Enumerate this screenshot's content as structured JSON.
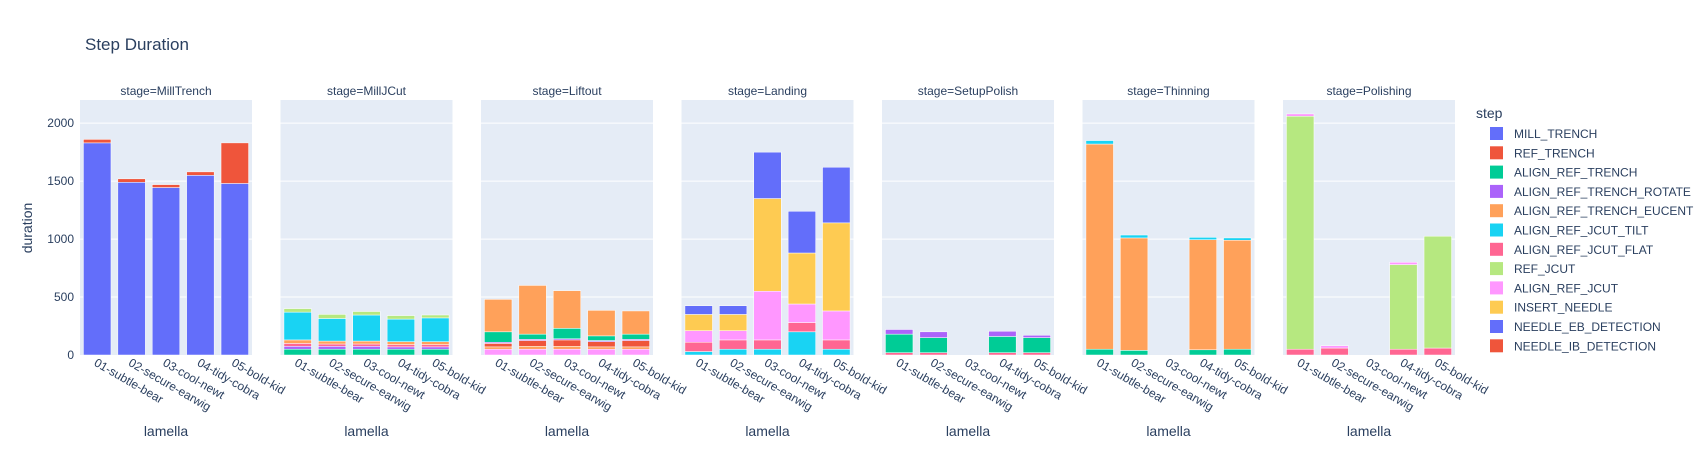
{
  "chart_data": {
    "type": "bar",
    "barmode": "stack",
    "title": "Step Duration",
    "xlabel": "lamella",
    "ylabel": "duration",
    "ylim": [
      0,
      2200
    ],
    "y_ticks": [
      0,
      500,
      1000,
      1500,
      2000
    ],
    "facet_prefix": "stage=",
    "categories": [
      "01-subtle-bear",
      "02-secure-earwig",
      "03-cool-newt",
      "04-tidy-cobra",
      "05-bold-kid"
    ],
    "legend": {
      "title": "step",
      "placement": "right",
      "entries": [
        {
          "name": "MILL_TRENCH",
          "color": "#636efa"
        },
        {
          "name": "REF_TRENCH",
          "color": "#EF553B"
        },
        {
          "name": "ALIGN_REF_TRENCH",
          "color": "#00cc96"
        },
        {
          "name": "ALIGN_REF_TRENCH_ROTATE",
          "color": "#ab63fa"
        },
        {
          "name": "ALIGN_REF_TRENCH_EUCENT",
          "color": "#FFA15A"
        },
        {
          "name": "ALIGN_REF_JCUT_TILT",
          "color": "#19d3f3"
        },
        {
          "name": "ALIGN_REF_JCUT_FLAT",
          "color": "#FF6692"
        },
        {
          "name": "REF_JCUT",
          "color": "#B6E880"
        },
        {
          "name": "ALIGN_REF_JCUT",
          "color": "#FF97FF"
        },
        {
          "name": "INSERT_NEEDLE",
          "color": "#FECB52"
        },
        {
          "name": "NEEDLE_EB_DETECTION",
          "color": "#636efa"
        },
        {
          "name": "NEEDLE_IB_DETECTION",
          "color": "#EF553B"
        }
      ]
    },
    "facets": [
      {
        "stage": "MillTrench",
        "bars": [
          [
            {
              "step": "MILL_TRENCH",
              "value": 1830
            },
            {
              "step": "REF_TRENCH",
              "value": 30
            }
          ],
          [
            {
              "step": "MILL_TRENCH",
              "value": 1490
            },
            {
              "step": "REF_TRENCH",
              "value": 30
            }
          ],
          [
            {
              "step": "MILL_TRENCH",
              "value": 1445
            },
            {
              "step": "REF_TRENCH",
              "value": 25
            }
          ],
          [
            {
              "step": "MILL_TRENCH",
              "value": 1550
            },
            {
              "step": "REF_TRENCH",
              "value": 30
            }
          ],
          [
            {
              "step": "MILL_TRENCH",
              "value": 1480
            },
            {
              "step": "REF_TRENCH",
              "value": 350
            }
          ]
        ]
      },
      {
        "stage": "MillJCut",
        "bars": [
          [
            {
              "step": "ALIGN_REF_TRENCH",
              "value": 50
            },
            {
              "step": "ALIGN_REF_TRENCH_ROTATE",
              "value": 25
            },
            {
              "step": "ALIGN_REF_JCUT_FLAT",
              "value": 25
            },
            {
              "step": "ALIGN_REF_TRENCH_EUCENT",
              "value": 30
            },
            {
              "step": "ALIGN_REF_JCUT_TILT",
              "value": 240
            },
            {
              "step": "REF_JCUT",
              "value": 30
            }
          ],
          [
            {
              "step": "ALIGN_REF_TRENCH",
              "value": 50
            },
            {
              "step": "ALIGN_REF_TRENCH_ROTATE",
              "value": 25
            },
            {
              "step": "ALIGN_REF_JCUT_FLAT",
              "value": 20
            },
            {
              "step": "ALIGN_REF_TRENCH_EUCENT",
              "value": 25
            },
            {
              "step": "ALIGN_REF_JCUT_TILT",
              "value": 195
            },
            {
              "step": "REF_JCUT",
              "value": 35
            }
          ],
          [
            {
              "step": "ALIGN_REF_TRENCH",
              "value": 50
            },
            {
              "step": "ALIGN_REF_TRENCH_ROTATE",
              "value": 25
            },
            {
              "step": "ALIGN_REF_JCUT_FLAT",
              "value": 20
            },
            {
              "step": "ALIGN_REF_TRENCH_EUCENT",
              "value": 25
            },
            {
              "step": "ALIGN_REF_JCUT_TILT",
              "value": 225
            },
            {
              "step": "REF_JCUT",
              "value": 30
            }
          ],
          [
            {
              "step": "ALIGN_REF_TRENCH",
              "value": 50
            },
            {
              "step": "ALIGN_REF_TRENCH_ROTATE",
              "value": 20
            },
            {
              "step": "ALIGN_REF_JCUT_FLAT",
              "value": 20
            },
            {
              "step": "ALIGN_REF_TRENCH_EUCENT",
              "value": 25
            },
            {
              "step": "ALIGN_REF_JCUT_TILT",
              "value": 195
            },
            {
              "step": "REF_JCUT",
              "value": 30
            }
          ],
          [
            {
              "step": "ALIGN_REF_TRENCH",
              "value": 50
            },
            {
              "step": "ALIGN_REF_TRENCH_ROTATE",
              "value": 20
            },
            {
              "step": "ALIGN_REF_JCUT_FLAT",
              "value": 20
            },
            {
              "step": "ALIGN_REF_TRENCH_EUCENT",
              "value": 25
            },
            {
              "step": "ALIGN_REF_JCUT_TILT",
              "value": 205
            },
            {
              "step": "REF_JCUT",
              "value": 25
            }
          ]
        ]
      },
      {
        "stage": "Liftout",
        "bars": [
          [
            {
              "step": "ALIGN_REF_JCUT",
              "value": 50
            },
            {
              "step": "ALIGN_REF_TRENCH_EUCENT",
              "value": 20
            },
            {
              "step": "NEEDLE_IB_DETECTION",
              "value": 30
            },
            {
              "step": "ALIGN_REF_TRENCH_ROTATE",
              "value": 10
            },
            {
              "step": "ALIGN_REF_TRENCH",
              "value": 90
            },
            {
              "step": "ALIGN_REF_TRENCH_EUCENT",
              "value": 280
            }
          ],
          [
            {
              "step": "ALIGN_REF_JCUT",
              "value": 50
            },
            {
              "step": "ALIGN_REF_TRENCH_EUCENT",
              "value": 25
            },
            {
              "step": "NEEDLE_IB_DETECTION",
              "value": 50
            },
            {
              "step": "ALIGN_REF_TRENCH_ROTATE",
              "value": 10
            },
            {
              "step": "ALIGN_REF_TRENCH",
              "value": 45
            },
            {
              "step": "ALIGN_REF_TRENCH_EUCENT",
              "value": 420
            }
          ],
          [
            {
              "step": "ALIGN_REF_JCUT",
              "value": 50
            },
            {
              "step": "ALIGN_REF_TRENCH_EUCENT",
              "value": 25
            },
            {
              "step": "NEEDLE_IB_DETECTION",
              "value": 55
            },
            {
              "step": "ALIGN_REF_TRENCH_ROTATE",
              "value": 10
            },
            {
              "step": "ALIGN_REF_TRENCH",
              "value": 90
            },
            {
              "step": "ALIGN_REF_TRENCH_EUCENT",
              "value": 325
            }
          ],
          [
            {
              "step": "ALIGN_REF_JCUT",
              "value": 50
            },
            {
              "step": "ALIGN_REF_TRENCH_EUCENT",
              "value": 20
            },
            {
              "step": "NEEDLE_IB_DETECTION",
              "value": 45
            },
            {
              "step": "ALIGN_REF_TRENCH_ROTATE",
              "value": 10
            },
            {
              "step": "ALIGN_REF_TRENCH",
              "value": 40
            },
            {
              "step": "ALIGN_REF_TRENCH_EUCENT",
              "value": 220
            }
          ],
          [
            {
              "step": "ALIGN_REF_JCUT",
              "value": 50
            },
            {
              "step": "ALIGN_REF_TRENCH_EUCENT",
              "value": 20
            },
            {
              "step": "NEEDLE_IB_DETECTION",
              "value": 55
            },
            {
              "step": "ALIGN_REF_TRENCH_ROTATE",
              "value": 10
            },
            {
              "step": "ALIGN_REF_TRENCH",
              "value": 45
            },
            {
              "step": "ALIGN_REF_TRENCH_EUCENT",
              "value": 200
            }
          ]
        ]
      },
      {
        "stage": "Landing",
        "bars": [
          [
            {
              "step": "ALIGN_REF_JCUT_TILT",
              "value": 30
            },
            {
              "step": "ALIGN_REF_JCUT_FLAT",
              "value": 80
            },
            {
              "step": "ALIGN_REF_JCUT",
              "value": 100
            },
            {
              "step": "INSERT_NEEDLE",
              "value": 140
            },
            {
              "step": "NEEDLE_EB_DETECTION",
              "value": 75
            }
          ],
          [
            {
              "step": "ALIGN_REF_JCUT_TILT",
              "value": 50
            },
            {
              "step": "ALIGN_REF_JCUT_FLAT",
              "value": 80
            },
            {
              "step": "ALIGN_REF_JCUT",
              "value": 80
            },
            {
              "step": "INSERT_NEEDLE",
              "value": 140
            },
            {
              "step": "NEEDLE_EB_DETECTION",
              "value": 75
            }
          ],
          [
            {
              "step": "ALIGN_REF_JCUT_TILT",
              "value": 50
            },
            {
              "step": "ALIGN_REF_JCUT_FLAT",
              "value": 80
            },
            {
              "step": "ALIGN_REF_JCUT",
              "value": 420
            },
            {
              "step": "INSERT_NEEDLE",
              "value": 800
            },
            {
              "step": "NEEDLE_EB_DETECTION",
              "value": 400
            }
          ],
          [
            {
              "step": "ALIGN_REF_JCUT_TILT",
              "value": 200
            },
            {
              "step": "ALIGN_REF_JCUT_FLAT",
              "value": 80
            },
            {
              "step": "ALIGN_REF_JCUT",
              "value": 160
            },
            {
              "step": "INSERT_NEEDLE",
              "value": 440
            },
            {
              "step": "NEEDLE_EB_DETECTION",
              "value": 360
            }
          ],
          [
            {
              "step": "ALIGN_REF_JCUT_TILT",
              "value": 50
            },
            {
              "step": "ALIGN_REF_JCUT_FLAT",
              "value": 80
            },
            {
              "step": "ALIGN_REF_JCUT",
              "value": 250
            },
            {
              "step": "INSERT_NEEDLE",
              "value": 760
            },
            {
              "step": "NEEDLE_EB_DETECTION",
              "value": 480
            }
          ]
        ]
      },
      {
        "stage": "SetupPolish",
        "bars": [
          [
            {
              "step": "ALIGN_REF_JCUT_FLAT",
              "value": 20
            },
            {
              "step": "ALIGN_REF_TRENCH",
              "value": 160
            },
            {
              "step": "ALIGN_REF_TRENCH_ROTATE",
              "value": 40
            }
          ],
          [
            {
              "step": "ALIGN_REF_JCUT_FLAT",
              "value": 20
            },
            {
              "step": "ALIGN_REF_TRENCH",
              "value": 130
            },
            {
              "step": "ALIGN_REF_TRENCH_ROTATE",
              "value": 50
            }
          ],
          [],
          [
            {
              "step": "ALIGN_REF_JCUT_FLAT",
              "value": 20
            },
            {
              "step": "ALIGN_REF_TRENCH",
              "value": 140
            },
            {
              "step": "ALIGN_REF_TRENCH_ROTATE",
              "value": 45
            }
          ],
          [
            {
              "step": "ALIGN_REF_JCUT_FLAT",
              "value": 20
            },
            {
              "step": "ALIGN_REF_TRENCH",
              "value": 130
            },
            {
              "step": "ALIGN_REF_TRENCH_ROTATE",
              "value": 20
            }
          ]
        ]
      },
      {
        "stage": "Thinning",
        "bars": [
          [
            {
              "step": "ALIGN_REF_TRENCH",
              "value": 50
            },
            {
              "step": "ALIGN_REF_TRENCH_EUCENT",
              "value": 1770
            },
            {
              "step": "ALIGN_REF_JCUT_TILT",
              "value": 30
            }
          ],
          [
            {
              "step": "ALIGN_REF_TRENCH",
              "value": 40
            },
            {
              "step": "ALIGN_REF_TRENCH_EUCENT",
              "value": 970
            },
            {
              "step": "ALIGN_REF_JCUT_TILT",
              "value": 25
            }
          ],
          [],
          [
            {
              "step": "ALIGN_REF_TRENCH",
              "value": 45
            },
            {
              "step": "ALIGN_REF_TRENCH_EUCENT",
              "value": 950
            },
            {
              "step": "ALIGN_REF_JCUT_TILT",
              "value": 20
            }
          ],
          [
            {
              "step": "ALIGN_REF_TRENCH",
              "value": 50
            },
            {
              "step": "ALIGN_REF_TRENCH_EUCENT",
              "value": 940
            },
            {
              "step": "ALIGN_REF_JCUT_TILT",
              "value": 20
            }
          ]
        ]
      },
      {
        "stage": "Polishing",
        "bars": [
          [
            {
              "step": "ALIGN_REF_JCUT_FLAT",
              "value": 50
            },
            {
              "step": "REF_JCUT",
              "value": 2010
            },
            {
              "step": "ALIGN_REF_JCUT",
              "value": 20
            }
          ],
          [
            {
              "step": "ALIGN_REF_JCUT_FLAT",
              "value": 60
            },
            {
              "step": "ALIGN_REF_JCUT",
              "value": 20
            }
          ],
          [],
          [
            {
              "step": "ALIGN_REF_JCUT_FLAT",
              "value": 50
            },
            {
              "step": "REF_JCUT",
              "value": 730
            },
            {
              "step": "ALIGN_REF_JCUT",
              "value": 20
            }
          ],
          [
            {
              "step": "ALIGN_REF_JCUT_FLAT",
              "value": 60
            },
            {
              "step": "REF_JCUT",
              "value": 965
            }
          ]
        ]
      }
    ]
  }
}
